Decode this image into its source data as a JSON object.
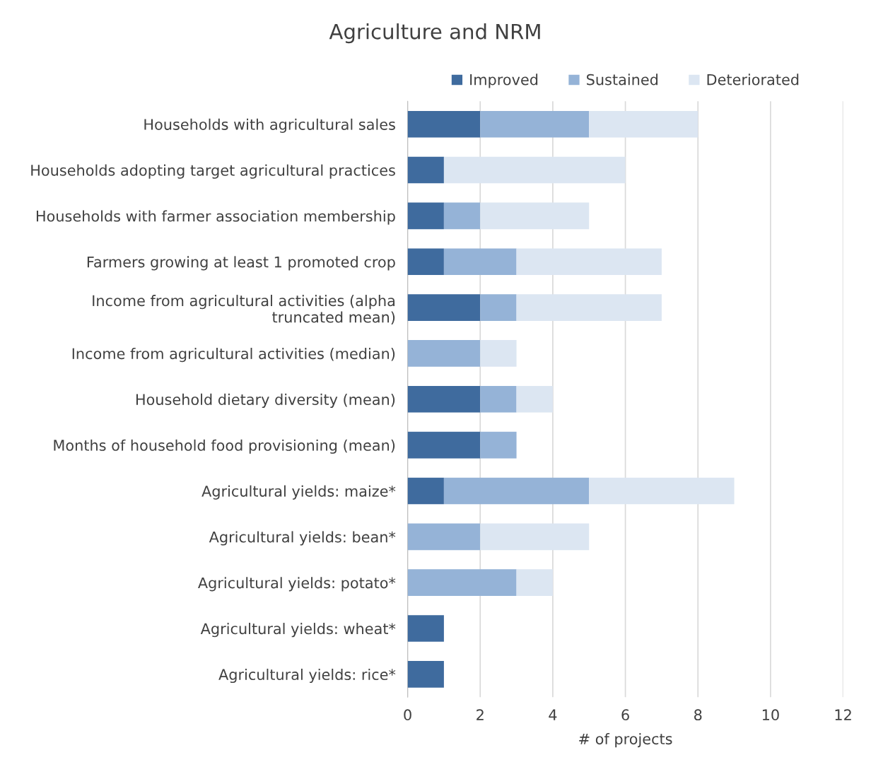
{
  "chart_data": {
    "type": "bar",
    "orientation": "horizontal",
    "stacked": true,
    "title": "Agriculture and NRM",
    "xlabel": "# of projects",
    "categories": [
      "Households with agricultural sales",
      "Households adopting target agricultural practices",
      "Households with farmer association membership",
      "Farmers growing at least 1 promoted crop",
      "Income from agricultural activities (alpha truncated mean)",
      "Income from agricultural activities (median)",
      "Household dietary diversity (mean)",
      "Months of household food provisioning (mean)",
      "Agricultural yields: maize*",
      "Agricultural yields: bean*",
      "Agricultural yields: potato*",
      "Agricultural yields: wheat*",
      "Agricultural yields: rice*"
    ],
    "series": [
      {
        "name": "Improved",
        "color": "#3f6b9e",
        "values": [
          2,
          1,
          1,
          1,
          2,
          0,
          2,
          2,
          1,
          0,
          0,
          1,
          1
        ]
      },
      {
        "name": "Sustained",
        "color": "#95b3d7",
        "values": [
          3,
          0,
          1,
          2,
          1,
          2,
          1,
          1,
          4,
          2,
          3,
          0,
          0
        ]
      },
      {
        "name": "Deteriorated",
        "color": "#dce6f2",
        "values": [
          3,
          5,
          3,
          4,
          4,
          1,
          1,
          0,
          4,
          3,
          1,
          0,
          0
        ]
      }
    ],
    "xlim": [
      0,
      12
    ],
    "xticks": [
      0,
      2,
      4,
      6,
      8,
      10,
      12
    ],
    "grid": "x",
    "legend": "top"
  }
}
